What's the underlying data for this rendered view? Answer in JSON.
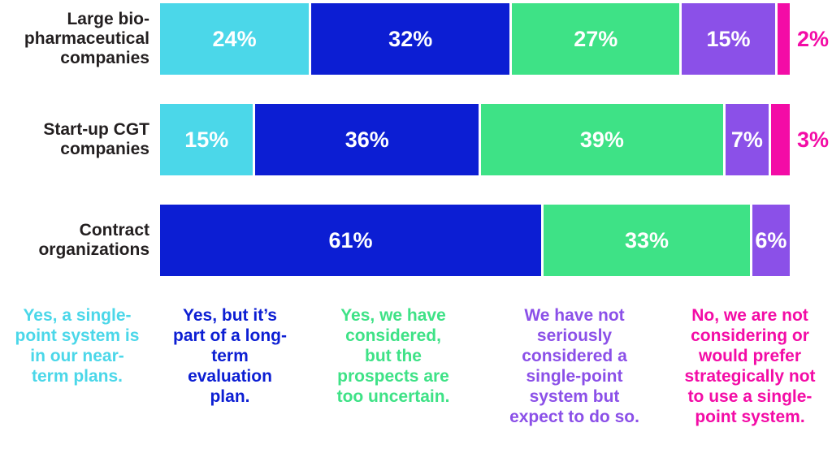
{
  "chart_data": {
    "type": "bar",
    "orientation": "horizontal-stacked",
    "value_suffix": "%",
    "small_value_outside_threshold": 4,
    "label_color": "#231F20",
    "categories": [
      {
        "label_lines": [
          "Large bio-",
          "pharmaceutical",
          "companies"
        ]
      },
      {
        "label_lines": [
          "Start-up CGT",
          "companies"
        ]
      },
      {
        "label_lines": [
          "Contract",
          "organizations"
        ]
      }
    ],
    "series": [
      {
        "name": "Yes, a single-point system is in our near-term plans.",
        "color": "#4BD7E9",
        "values": [
          24,
          15,
          0
        ]
      },
      {
        "name": "Yes, but it’s part of a long-term evaluation plan.",
        "color": "#0C1ED3",
        "values": [
          32,
          36,
          61
        ]
      },
      {
        "name": "Yes, we have considered, but the prospects are too uncertain.",
        "color": "#3EE286",
        "values": [
          27,
          39,
          33
        ]
      },
      {
        "name": "We have not seriously considered a single-point system but expect to do so.",
        "color": "#8B50E8",
        "values": [
          15,
          7,
          6
        ]
      },
      {
        "name": "No, we are not considering or would prefer strategically not to use a single-point system.",
        "color": "#F30CA6",
        "values": [
          2,
          3,
          0
        ]
      }
    ],
    "legend_position": "bottom"
  }
}
